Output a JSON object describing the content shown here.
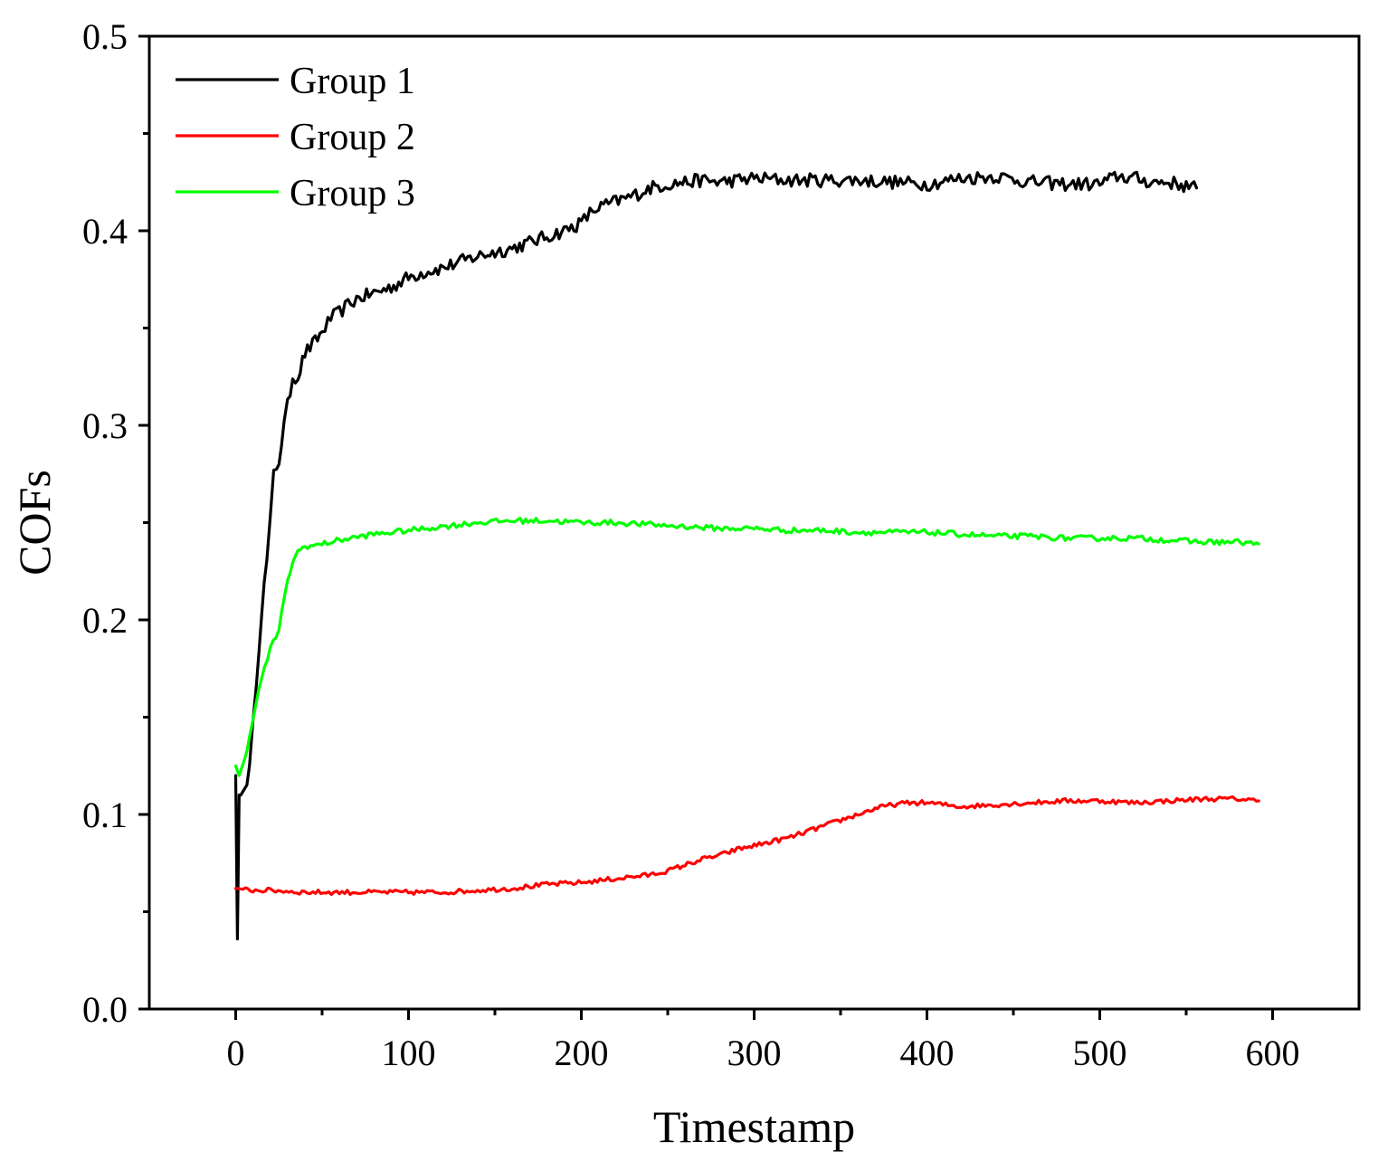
{
  "chart_data": {
    "type": "line",
    "title": "",
    "xlabel": "Timestamp",
    "ylabel": "COFs",
    "xlim": [
      -50,
      650
    ],
    "ylim": [
      0.0,
      0.5
    ],
    "x_ticks": [
      0,
      100,
      200,
      300,
      400,
      500,
      600
    ],
    "x_tick_labels": [
      "0",
      "100",
      "200",
      "300",
      "400",
      "500",
      "600"
    ],
    "y_ticks": [
      0.0,
      0.1,
      0.2,
      0.3,
      0.4,
      0.5
    ],
    "y_tick_labels": [
      "0.0",
      "0.1",
      "0.2",
      "0.3",
      "0.4",
      "0.5"
    ],
    "grid": false,
    "legend_position": "top-left",
    "series": [
      {
        "name": "Group 1",
        "color": "#000000",
        "x": [
          0,
          1,
          2,
          3,
          5,
          8,
          10,
          12,
          15,
          18,
          20,
          22,
          25,
          28,
          30,
          33,
          36,
          40,
          43,
          46,
          50,
          55,
          60,
          65,
          70,
          80,
          90,
          100,
          110,
          120,
          130,
          140,
          150,
          160,
          170,
          180,
          190,
          200,
          205,
          210,
          220,
          230,
          240,
          250,
          260,
          270,
          280,
          290,
          300,
          320,
          340,
          360,
          380,
          400,
          420,
          440,
          460,
          480,
          500,
          510,
          520,
          530,
          540,
          550,
          556
        ],
        "y": [
          0.12,
          0.036,
          0.11,
          0.11,
          0.113,
          0.123,
          0.145,
          0.17,
          0.205,
          0.23,
          0.25,
          0.275,
          0.282,
          0.3,
          0.31,
          0.325,
          0.325,
          0.337,
          0.34,
          0.343,
          0.348,
          0.355,
          0.358,
          0.362,
          0.365,
          0.368,
          0.371,
          0.376,
          0.379,
          0.381,
          0.384,
          0.387,
          0.389,
          0.391,
          0.394,
          0.397,
          0.4,
          0.404,
          0.409,
          0.412,
          0.415,
          0.418,
          0.422,
          0.424,
          0.425,
          0.426,
          0.425,
          0.426,
          0.427,
          0.426,
          0.426,
          0.426,
          0.425,
          0.424,
          0.427,
          0.428,
          0.425,
          0.424,
          0.424,
          0.428,
          0.427,
          0.425,
          0.425,
          0.423,
          0.422
        ]
      },
      {
        "name": "Group 2",
        "color": "#ff0000",
        "x": [
          0,
          10,
          20,
          40,
          60,
          80,
          100,
          120,
          140,
          160,
          180,
          200,
          220,
          240,
          250,
          260,
          270,
          280,
          290,
          300,
          310,
          320,
          330,
          340,
          350,
          360,
          370,
          380,
          390,
          400,
          420,
          440,
          460,
          480,
          500,
          520,
          540,
          560,
          580,
          592
        ],
        "y": [
          0.062,
          0.061,
          0.061,
          0.06,
          0.06,
          0.06,
          0.06,
          0.06,
          0.061,
          0.062,
          0.064,
          0.065,
          0.067,
          0.069,
          0.071,
          0.074,
          0.077,
          0.079,
          0.082,
          0.084,
          0.086,
          0.088,
          0.091,
          0.094,
          0.097,
          0.1,
          0.103,
          0.105,
          0.106,
          0.106,
          0.104,
          0.105,
          0.106,
          0.107,
          0.107,
          0.106,
          0.107,
          0.108,
          0.108,
          0.107
        ]
      },
      {
        "name": "Group 3",
        "color": "#00ff00",
        "x": [
          0,
          2,
          5,
          8,
          10,
          15,
          20,
          25,
          28,
          30,
          33,
          36,
          40,
          45,
          50,
          60,
          80,
          100,
          120,
          140,
          160,
          180,
          200,
          220,
          240,
          260,
          280,
          300,
          320,
          340,
          360,
          380,
          400,
          420,
          440,
          460,
          480,
          500,
          520,
          540,
          560,
          580,
          592
        ],
        "y": [
          0.125,
          0.12,
          0.128,
          0.14,
          0.15,
          0.17,
          0.185,
          0.195,
          0.21,
          0.22,
          0.23,
          0.235,
          0.238,
          0.238,
          0.239,
          0.241,
          0.244,
          0.246,
          0.248,
          0.25,
          0.251,
          0.251,
          0.25,
          0.25,
          0.249,
          0.248,
          0.247,
          0.247,
          0.246,
          0.246,
          0.245,
          0.245,
          0.245,
          0.244,
          0.243,
          0.243,
          0.242,
          0.242,
          0.242,
          0.241,
          0.24,
          0.24,
          0.239
        ]
      }
    ]
  }
}
